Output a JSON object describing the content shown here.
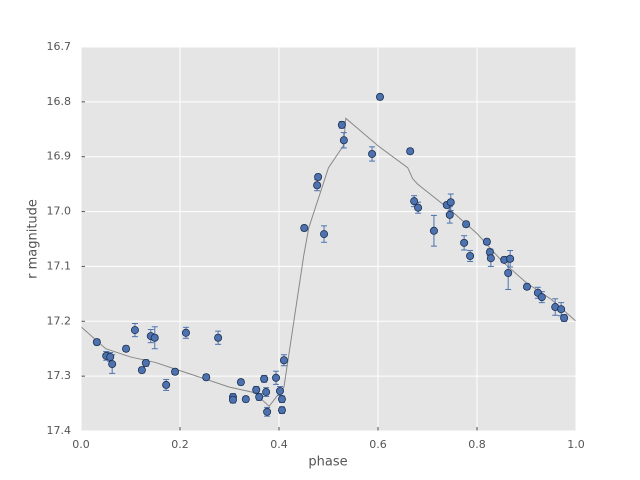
{
  "chart_data": {
    "type": "scatter",
    "xlabel": "phase",
    "ylabel": "r magnitude",
    "xlim": [
      0,
      1
    ],
    "ylim": [
      17.4,
      16.7
    ],
    "xticks": [
      {
        "value": 0,
        "label": "0.0"
      },
      0.2,
      0.4,
      0.6,
      0.8,
      {
        "value": 1,
        "label": "1.0"
      }
    ],
    "yticks": [
      16.7,
      16.8,
      16.9,
      {
        "value": 17,
        "label": "17.0"
      },
      17.1,
      17.2,
      17.3,
      17.4
    ],
    "grid": true,
    "background": "#e5e5e5",
    "series": [
      {
        "type": "line",
        "color": "#888888",
        "x": [
          0,
          0.05,
          0.1,
          0.15,
          0.2,
          0.3,
          0.35,
          0.38,
          0.41,
          0.43,
          0.45,
          0.46,
          0.5,
          0.53,
          0.535,
          0.6,
          0.66,
          0.67,
          0.68,
          0.75,
          0.8,
          0.85,
          0.9,
          0.95,
          1.0
        ],
        "values": [
          17.21,
          17.25,
          17.265,
          17.275,
          17.29,
          17.32,
          17.33,
          17.355,
          17.32,
          17.2,
          17.08,
          17.03,
          16.92,
          16.88,
          16.83,
          16.88,
          16.92,
          16.94,
          16.95,
          17.0,
          17.04,
          17.09,
          17.13,
          17.16,
          17.2
        ]
      },
      {
        "type": "scatter",
        "color": "#4c72b0",
        "x": [
          0.032,
          0.051,
          0.059,
          0.063,
          0.091,
          0.109,
          0.123,
          0.131,
          0.141,
          0.149,
          0.172,
          0.19,
          0.212,
          0.253,
          0.277,
          0.307,
          0.307,
          0.323,
          0.333,
          0.354,
          0.36,
          0.37,
          0.374,
          0.376,
          0.394,
          0.402,
          0.406,
          0.406,
          0.41,
          0.451,
          0.477,
          0.479,
          0.491,
          0.527,
          0.531,
          0.588,
          0.604,
          0.665,
          0.673,
          0.681,
          0.713,
          0.739,
          0.747,
          0.745,
          0.774,
          0.778,
          0.786,
          0.82,
          0.826,
          0.828,
          0.855,
          0.863,
          0.867,
          0.901,
          0.923,
          0.931,
          0.958,
          0.97,
          0.976
        ],
        "values": [
          17.238,
          17.263,
          17.265,
          17.278,
          17.25,
          17.216,
          17.289,
          17.276,
          17.227,
          17.23,
          17.316,
          17.292,
          17.221,
          17.302,
          17.23,
          17.338,
          17.343,
          17.311,
          17.342,
          17.325,
          17.338,
          17.305,
          17.329,
          17.365,
          17.303,
          17.327,
          17.342,
          17.362,
          17.271,
          17.03,
          16.952,
          16.937,
          17.041,
          16.842,
          16.87,
          16.895,
          16.791,
          16.89,
          16.981,
          16.993,
          17.035,
          16.988,
          16.983,
          17.006,
          17.057,
          17.023,
          17.081,
          17.055,
          17.074,
          17.085,
          17.088,
          17.112,
          17.086,
          17.137,
          17.148,
          17.156,
          17.174,
          17.178,
          17.194
        ],
        "errors": [
          0.005,
          0.008,
          0.008,
          0.017,
          0.005,
          0.012,
          0.005,
          0.006,
          0.012,
          0.02,
          0.01,
          0.005,
          0.01,
          0.005,
          0.012,
          0.006,
          0.006,
          0.005,
          0.005,
          0.006,
          0.006,
          0.006,
          0.008,
          0.008,
          0.012,
          0.008,
          0.006,
          0.006,
          0.01,
          0.005,
          0.01,
          0.005,
          0.015,
          0.006,
          0.014,
          0.013,
          0.005,
          0.005,
          0.01,
          0.01,
          0.028,
          0.005,
          0.015,
          0.015,
          0.013,
          0.005,
          0.01,
          0.005,
          0.006,
          0.015,
          0.005,
          0.03,
          0.015,
          0.005,
          0.01,
          0.01,
          0.015,
          0.012,
          0.006
        ]
      }
    ]
  }
}
